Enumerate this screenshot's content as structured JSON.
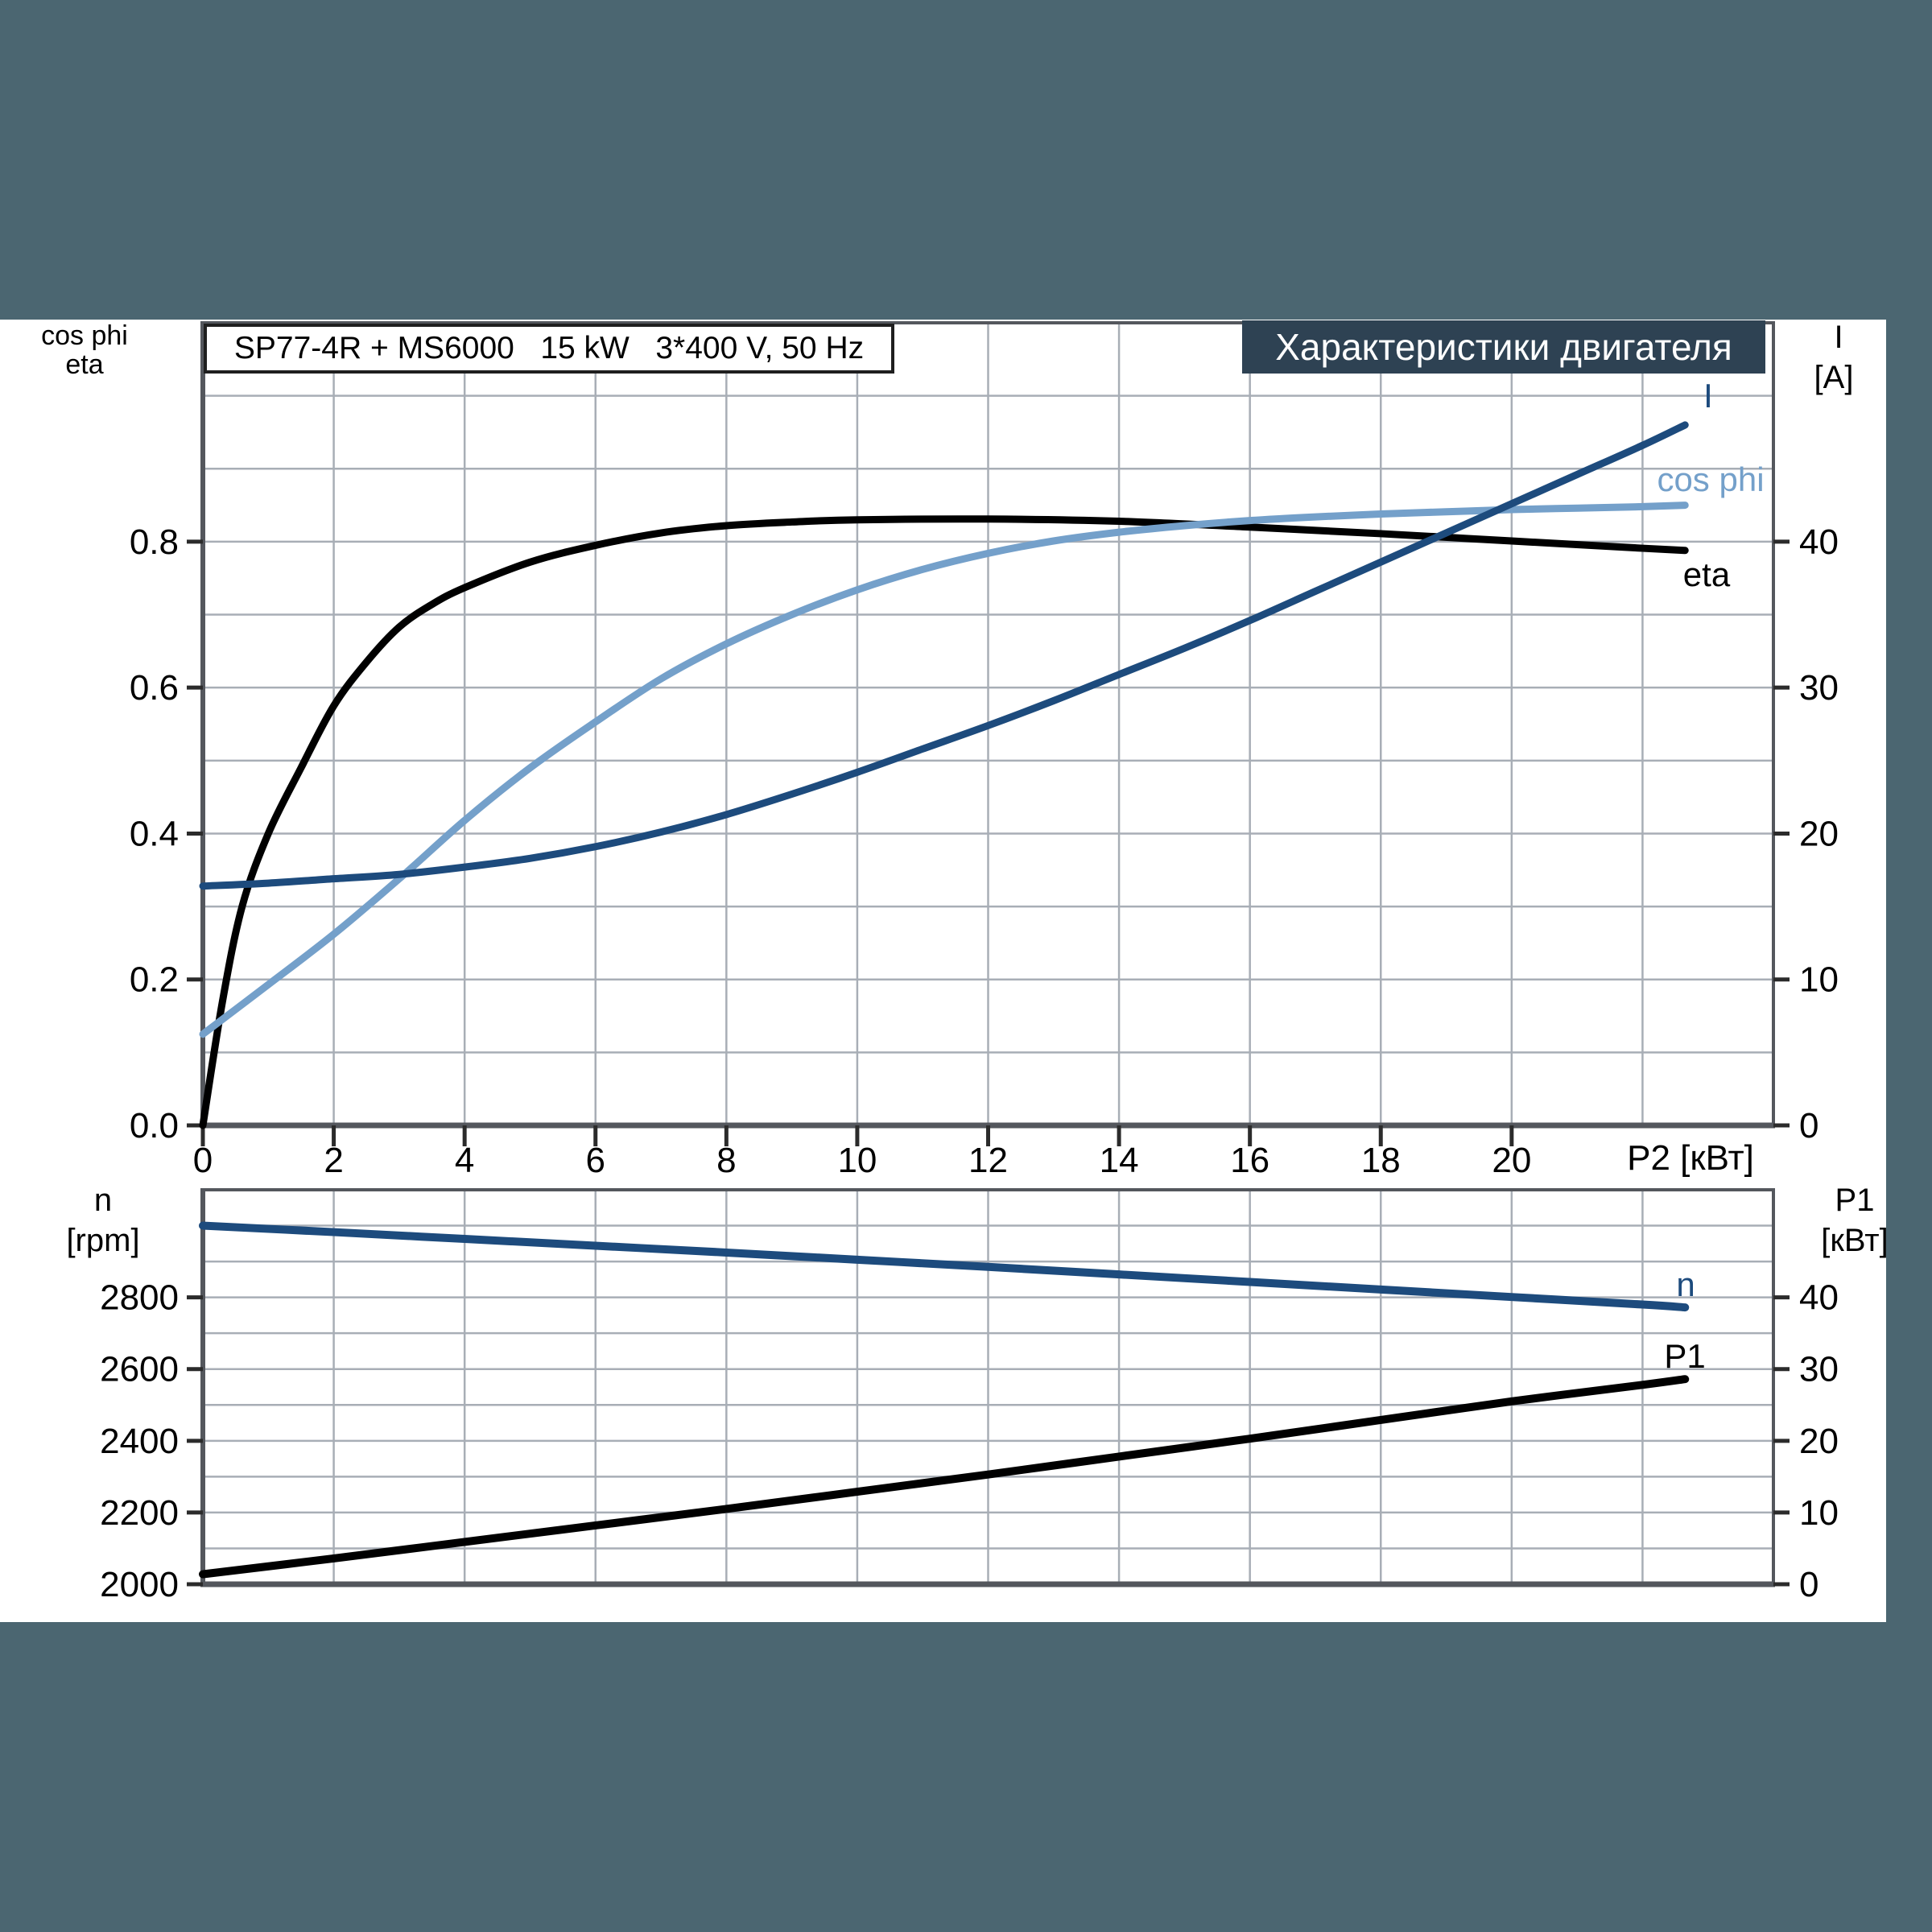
{
  "page": {
    "background_color": "#4b6671",
    "content_background": "#ffffff",
    "accent_navy": "#1d4b7d",
    "accent_lightblue": "#74a0ca",
    "header_bg": "#2e4253",
    "grid_color": "#a8aeb6",
    "frame_color": "#54575d"
  },
  "header_box": {
    "label": "Характеристики двигателя"
  },
  "title_box": {
    "label": "SP77-4R + MS6000   15 kW   3*400 V, 50 Hz"
  },
  "top_chart": {
    "left_axis_title": {
      "line1": "cos phi",
      "line2": "eta"
    },
    "right_axis_title": {
      "line1": "I",
      "line2": "[A]"
    },
    "x_axis_title": "P2 [кВт]",
    "curve_labels": {
      "current": "I",
      "cos_phi": "cos phi",
      "eta": "eta"
    }
  },
  "bottom_chart": {
    "left_axis_title": {
      "line1": "n",
      "line2": "[rpm]"
    },
    "right_axis_title": {
      "line1": "P1",
      "line2": "[кВт]"
    },
    "curve_labels": {
      "n": "n",
      "p1": "P1"
    }
  },
  "chart_data": [
    {
      "type": "line",
      "title": "SP77-4R + MS6000 15 kW 3*400 V, 50 Hz",
      "x_axis": {
        "label": "P2 [кВт]",
        "range": [
          0,
          24
        ],
        "ticks": [
          0,
          2,
          4,
          6,
          8,
          10,
          12,
          14,
          16,
          18,
          20
        ],
        "tick_labels": [
          "0",
          "2",
          "4",
          "6",
          "8",
          "10",
          "12",
          "14",
          "16",
          "18",
          "20"
        ],
        "grid": [
          2,
          4,
          6,
          8,
          10,
          12,
          14,
          16,
          18,
          20,
          22
        ]
      },
      "left_axis": {
        "label": "cos phi / eta",
        "range": [
          0,
          1.1
        ],
        "ticks": [
          0,
          0.2,
          0.4,
          0.6,
          0.8
        ],
        "tick_labels": [
          "0.0",
          "0.2",
          "0.4",
          "0.6",
          "0.8"
        ]
      },
      "right_axis": {
        "label": "I [A]",
        "range": [
          0,
          55
        ],
        "ticks": [
          0,
          10,
          20,
          30,
          40
        ],
        "tick_labels": [
          "0",
          "10",
          "20",
          "30",
          "40"
        ]
      },
      "grid_y": {
        "axis": "left",
        "values": [
          0.1,
          0.2,
          0.3,
          0.4,
          0.5,
          0.6,
          0.7,
          0.8,
          0.9,
          1.0
        ]
      },
      "series": [
        {
          "name": "eta",
          "axis": "left",
          "color": "#000000",
          "width": 9,
          "points": [
            [
              0,
              0
            ],
            [
              0.3,
              0.17
            ],
            [
              0.6,
              0.3
            ],
            [
              1,
              0.4
            ],
            [
              1.5,
              0.49
            ],
            [
              2,
              0.575
            ],
            [
              2.5,
              0.635
            ],
            [
              3,
              0.683
            ],
            [
              3.5,
              0.714
            ],
            [
              4,
              0.737
            ],
            [
              5,
              0.772
            ],
            [
              6,
              0.795
            ],
            [
              7,
              0.812
            ],
            [
              8,
              0.822
            ],
            [
              9,
              0.827
            ],
            [
              10,
              0.83
            ],
            [
              12,
              0.831
            ],
            [
              14,
              0.828
            ],
            [
              16,
              0.82
            ],
            [
              18,
              0.811
            ],
            [
              20,
              0.801
            ],
            [
              22,
              0.791
            ],
            [
              22.65,
              0.788
            ]
          ]
        },
        {
          "name": "cos phi",
          "axis": "left",
          "color": "#74a0ca",
          "width": 9,
          "points": [
            [
              0,
              0.125
            ],
            [
              1,
              0.193
            ],
            [
              2,
              0.262
            ],
            [
              3,
              0.338
            ],
            [
              4,
              0.418
            ],
            [
              5,
              0.49
            ],
            [
              6,
              0.553
            ],
            [
              7,
              0.612
            ],
            [
              8,
              0.66
            ],
            [
              9,
              0.7
            ],
            [
              10,
              0.734
            ],
            [
              11,
              0.762
            ],
            [
              12,
              0.784
            ],
            [
              13,
              0.801
            ],
            [
              14,
              0.813
            ],
            [
              15,
              0.822
            ],
            [
              16,
              0.829
            ],
            [
              17,
              0.834
            ],
            [
              18,
              0.838
            ],
            [
              19,
              0.841
            ],
            [
              20,
              0.844
            ],
            [
              21,
              0.846
            ],
            [
              22,
              0.848
            ],
            [
              22.65,
              0.85
            ]
          ]
        },
        {
          "name": "I",
          "axis": "right",
          "color": "#1d4b7d",
          "width": 9,
          "points": [
            [
              0,
              16.4
            ],
            [
              1,
              16.6
            ],
            [
              2,
              16.9
            ],
            [
              3,
              17.2
            ],
            [
              4,
              17.7
            ],
            [
              5,
              18.3
            ],
            [
              6,
              19.1
            ],
            [
              7,
              20.1
            ],
            [
              8,
              21.3
            ],
            [
              9,
              22.7
            ],
            [
              10,
              24.2
            ],
            [
              11,
              25.8
            ],
            [
              12,
              27.4
            ],
            [
              13,
              29.1
            ],
            [
              14,
              30.9
            ],
            [
              15,
              32.7
            ],
            [
              16,
              34.6
            ],
            [
              17,
              36.6
            ],
            [
              18,
              38.6
            ],
            [
              19,
              40.6
            ],
            [
              20,
              42.6
            ],
            [
              21,
              44.6
            ],
            [
              22,
              46.6
            ],
            [
              22.65,
              48.0
            ]
          ]
        }
      ]
    },
    {
      "type": "line",
      "x_axis": {
        "label": "",
        "range": [
          0,
          24
        ],
        "ticks": [],
        "tick_labels": [],
        "grid": [
          2,
          4,
          6,
          8,
          10,
          12,
          14,
          16,
          18,
          20,
          22
        ]
      },
      "left_axis": {
        "label": "n [rpm]",
        "range": [
          2000,
          3100
        ],
        "ticks": [
          2000,
          2200,
          2400,
          2600,
          2800
        ],
        "tick_labels": [
          "2000",
          "2200",
          "2400",
          "2600",
          "2800"
        ]
      },
      "right_axis": {
        "label": "P1 [кВт]",
        "range": [
          0,
          55
        ],
        "ticks": [
          0,
          10,
          20,
          30,
          40
        ],
        "tick_labels": [
          "0",
          "10",
          "20",
          "30",
          "40"
        ]
      },
      "grid_y": {
        "axis": "right",
        "values": [
          5,
          10,
          15,
          20,
          25,
          30,
          35,
          40,
          45,
          50
        ]
      },
      "series": [
        {
          "name": "n",
          "axis": "left",
          "color": "#1d4b7d",
          "width": 10,
          "points": [
            [
              0,
              3000
            ],
            [
              2,
              2982
            ],
            [
              4,
              2963
            ],
            [
              6,
              2944
            ],
            [
              8,
              2925
            ],
            [
              10,
              2905
            ],
            [
              12,
              2885
            ],
            [
              14,
              2864
            ],
            [
              16,
              2843
            ],
            [
              18,
              2822
            ],
            [
              20,
              2801
            ],
            [
              22,
              2780
            ],
            [
              22.65,
              2772
            ]
          ]
        },
        {
          "name": "P1",
          "axis": "right",
          "color": "#000000",
          "width": 10,
          "points": [
            [
              0,
              1.4
            ],
            [
              2,
              3.6
            ],
            [
              4,
              5.9
            ],
            [
              6,
              8.2
            ],
            [
              8,
              10.5
            ],
            [
              10,
              12.9
            ],
            [
              12,
              15.3
            ],
            [
              14,
              17.8
            ],
            [
              16,
              20.3
            ],
            [
              18,
              22.9
            ],
            [
              20,
              25.5
            ],
            [
              22,
              27.8
            ],
            [
              22.65,
              28.6
            ]
          ]
        }
      ]
    }
  ]
}
